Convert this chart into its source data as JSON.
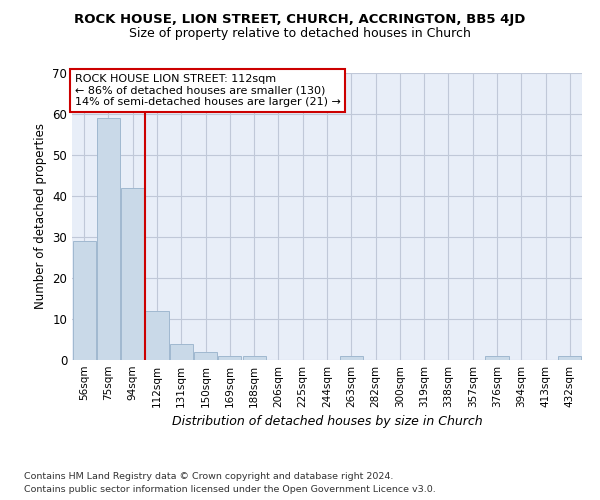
{
  "title": "ROCK HOUSE, LION STREET, CHURCH, ACCRINGTON, BB5 4JD",
  "subtitle": "Size of property relative to detached houses in Church",
  "xlabel": "Distribution of detached houses by size in Church",
  "ylabel": "Number of detached properties",
  "footer1": "Contains HM Land Registry data © Crown copyright and database right 2024.",
  "footer2": "Contains public sector information licensed under the Open Government Licence v3.0.",
  "categories": [
    "56sqm",
    "75sqm",
    "94sqm",
    "112sqm",
    "131sqm",
    "150sqm",
    "169sqm",
    "188sqm",
    "206sqm",
    "225sqm",
    "244sqm",
    "263sqm",
    "282sqm",
    "300sqm",
    "319sqm",
    "338sqm",
    "357sqm",
    "376sqm",
    "394sqm",
    "413sqm",
    "432sqm"
  ],
  "values": [
    29,
    59,
    42,
    12,
    4,
    2,
    1,
    1,
    0,
    0,
    0,
    1,
    0,
    0,
    0,
    0,
    0,
    1,
    0,
    0,
    1
  ],
  "bar_color": "#c9d9e8",
  "bar_edge_color": "#a0b8d0",
  "grid_color": "#c0c8d8",
  "background_color": "#e8eef8",
  "vline_color": "#cc0000",
  "vline_index": 3,
  "annotation_text": "ROCK HOUSE LION STREET: 112sqm\n← 86% of detached houses are smaller (130)\n14% of semi-detached houses are larger (21) →",
  "annotation_box_color": "#cc0000",
  "ylim": [
    0,
    70
  ],
  "yticks": [
    0,
    10,
    20,
    30,
    40,
    50,
    60,
    70
  ]
}
